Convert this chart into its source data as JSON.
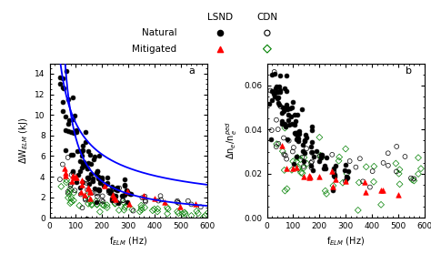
{
  "legend": {
    "lsnd_label": "LSND",
    "cdn_label": "CDN",
    "natural_label": "Natural",
    "mitigated_label": "Mitigated"
  },
  "panel_a": {
    "xlabel": "f$_{ELM}$ (Hz)",
    "ylabel": "$\\Delta$W$_{ELM}$ (kJ)",
    "xlim": [
      0,
      600
    ],
    "ylim": [
      0,
      15
    ],
    "yticks": [
      0,
      2,
      4,
      6,
      8,
      10,
      12,
      14
    ],
    "xticks": [
      0,
      100,
      200,
      300,
      400,
      500,
      600
    ],
    "label": "a",
    "curve1_A": 700.0,
    "curve1_b": 0.022,
    "curve2_A": 150.0,
    "curve2_b": 0.008
  },
  "panel_b": {
    "xlabel": "f$_{ELM}$ (Hz)",
    "ylabel": "$\\Delta$n$_e$/n$_e^{ped}$",
    "xlim": [
      0,
      600
    ],
    "ylim": [
      0.0,
      0.07
    ],
    "yticks": [
      0.0,
      0.02,
      0.04,
      0.06
    ],
    "xticks": [
      0,
      100,
      200,
      300,
      400,
      500,
      600
    ],
    "label": "b"
  },
  "colors": {
    "lsnd_natural": "black",
    "cdn_natural": "black",
    "lsnd_mitigated": "red",
    "cdn_mitigated": "green",
    "curve": "blue"
  }
}
